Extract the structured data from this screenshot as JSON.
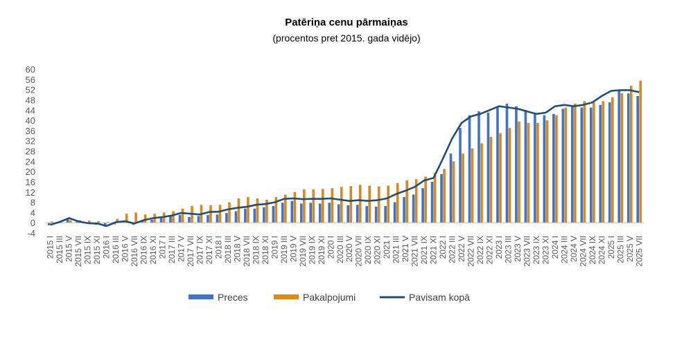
{
  "chart_data": {
    "type": "bar",
    "title": "Patēriņa cenu pārmaiņas",
    "subtitle": "(procentos pret 2015. gada vidējo)",
    "xlabel": "",
    "ylabel": "",
    "ylim": [
      -4,
      60
    ],
    "yticks": [
      "-4",
      "0",
      "4",
      "8",
      "12",
      "16",
      "20",
      "24",
      "28",
      "32",
      "36",
      "40",
      "44",
      "48",
      "52",
      "56",
      "60"
    ],
    "grid": false,
    "legend_position": "bottom",
    "colors": {
      "preces": "#4472C4",
      "pakalpojumi": "#D98A1F",
      "pavisam": "#1F4E79",
      "axis": "#BFBFBF"
    },
    "categories": [
      "2015 I",
      "2015 III",
      "2015 V",
      "2015 VII",
      "2015 IX",
      "2015 XI",
      "2016 I",
      "2016 III",
      "2016 V",
      "2016 VII",
      "2016 IX",
      "2016 XI",
      "2017 I",
      "2017 III",
      "2017 V",
      "2017 VII",
      "2017 IX",
      "2017 XI",
      "2018 I",
      "2018 III",
      "2018 V",
      "2018 VII",
      "2018 IX",
      "2018 XI",
      "2019 I",
      "2019 III",
      "2019 V",
      "2019 VII",
      "2019 IX",
      "2019 XI",
      "2020 I",
      "2020 III",
      "2020 V",
      "2020 VII",
      "2020 IX",
      "2020 XI",
      "2021 I",
      "2021 III",
      "2021 V",
      "2021 VII",
      "2021 IX",
      "2021 XI",
      "2022 I",
      "2022 III",
      "2022 V",
      "2022 VII",
      "2022 IX",
      "2022 XI",
      "2023 I",
      "2023 III",
      "2023 V",
      "2023 VII",
      "2023 IX",
      "2023 XI",
      "2024 I",
      "2024 III",
      "2024 V",
      "2024 VII",
      "2024 IX",
      "2024 XI",
      "2025 I",
      "2025 III",
      "2025 V",
      "2025 VII"
    ],
    "series": [
      {
        "name": "Preces",
        "type": "bar",
        "values": [
          -1.0,
          0.3,
          1.5,
          0.5,
          -0.3,
          -0.8,
          -1.5,
          -0.6,
          0.5,
          -0.8,
          0.5,
          1.2,
          2.0,
          2.8,
          3.0,
          2.2,
          2.6,
          3.0,
          3.2,
          3.8,
          4.5,
          5.5,
          5.5,
          6.0,
          6.5,
          7.8,
          8.5,
          7.5,
          7.8,
          7.5,
          7.8,
          7.2,
          6.8,
          7.0,
          6.5,
          6.3,
          6.5,
          8.0,
          10.0,
          11.0,
          13.5,
          16.0,
          19.0,
          27.0,
          37.0,
          42.0,
          43.5,
          43.0,
          45.0,
          46.5,
          45.5,
          44.0,
          42.5,
          42.0,
          42.5,
          44.5,
          45.5,
          45.0,
          45.0,
          46.0,
          47.0,
          51.5,
          50.5,
          49.5
        ]
      },
      {
        "name": "Pakalpojumi",
        "type": "bar",
        "values": [
          0.5,
          0.8,
          1.0,
          1.0,
          0.8,
          0.6,
          0.3,
          1.5,
          3.5,
          4.0,
          3.2,
          3.5,
          4.0,
          4.5,
          5.5,
          6.5,
          7.0,
          6.8,
          7.0,
          8.0,
          9.5,
          10.0,
          9.5,
          9.0,
          10.0,
          11.0,
          12.0,
          13.0,
          13.0,
          13.2,
          13.5,
          14.0,
          14.3,
          14.8,
          14.5,
          14.2,
          14.5,
          15.5,
          16.5,
          17.0,
          18.0,
          19.5,
          21.0,
          24.0,
          27.0,
          29.0,
          31.0,
          33.5,
          35.0,
          37.0,
          39.5,
          39.0,
          39.0,
          40.0,
          42.0,
          45.0,
          46.5,
          47.5,
          47.0,
          47.5,
          49.0,
          50.5,
          53.5,
          55.5
        ]
      },
      {
        "name": "Pavisam kopā",
        "type": "line",
        "values": [
          -0.8,
          0.3,
          1.8,
          0.5,
          -0.2,
          -0.3,
          -1.3,
          0.2,
          0.6,
          -0.3,
          1.0,
          1.8,
          2.2,
          2.8,
          3.8,
          3.5,
          3.2,
          4.2,
          4.3,
          5.2,
          5.8,
          6.2,
          7.0,
          7.3,
          8.0,
          9.3,
          9.5,
          9.2,
          9.3,
          9.3,
          9.5,
          9.0,
          8.5,
          8.8,
          8.5,
          8.8,
          9.5,
          11.2,
          12.5,
          14.0,
          16.5,
          17.5,
          25.0,
          33.0,
          39.0,
          41.5,
          42.5,
          44.0,
          45.5,
          45.0,
          44.5,
          43.5,
          42.5,
          43.0,
          45.5,
          46.0,
          45.5,
          46.0,
          47.0,
          49.5,
          51.5,
          51.8,
          51.8,
          51.0
        ]
      }
    ]
  }
}
